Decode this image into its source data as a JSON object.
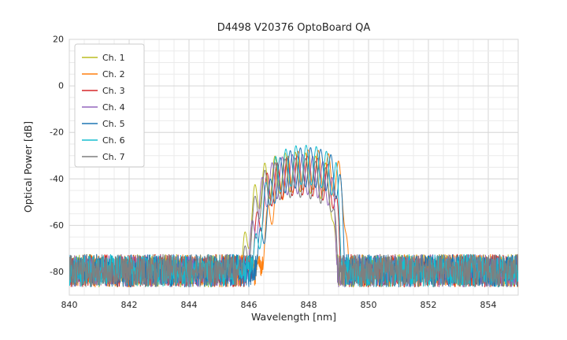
{
  "chart_data": {
    "type": "line",
    "title": "D4498 V20376 OptoBoard QA",
    "xlabel": "Wavelength [nm]",
    "ylabel": "Optical Power [dB]",
    "xlim": [
      840,
      855
    ],
    "ylim": [
      -90,
      20
    ],
    "xticks": [
      840,
      842,
      844,
      846,
      848,
      850,
      852,
      854
    ],
    "yticks": [
      20,
      0,
      -20,
      -40,
      -60,
      -80
    ],
    "x_minor_step": 0.5,
    "y_minor_step": 5,
    "grid": true,
    "legend_position": "upper left",
    "noise_floor_db": -79.5,
    "noise_spread_db": 7,
    "mode_spacing_nm": 0.34,
    "ripple_depth_db": 17,
    "signal_band_nm": [
      845.4,
      849.3
    ],
    "series": [
      {
        "name": "Ch. 1",
        "color": "#bcbd22",
        "center_nm": 847.55,
        "peak_db": -28.5,
        "hw": 1.15,
        "phase": 0.0
      },
      {
        "name": "Ch. 2",
        "color": "#ff7f0e",
        "center_nm": 848.05,
        "peak_db": -27.5,
        "hw": 1.05,
        "phase": 1.3
      },
      {
        "name": "Ch. 3",
        "color": "#d62728",
        "center_nm": 847.75,
        "peak_db": -30.0,
        "hw": 1.1,
        "phase": 2.4
      },
      {
        "name": "Ch. 4",
        "color": "#9467bd",
        "center_nm": 847.65,
        "peak_db": -29.5,
        "hw": 1.1,
        "phase": 3.6
      },
      {
        "name": "Ch. 5",
        "color": "#1f77b4",
        "center_nm": 847.95,
        "peak_db": -26.5,
        "hw": 1.05,
        "phase": 4.2
      },
      {
        "name": "Ch. 6",
        "color": "#17becf",
        "center_nm": 847.85,
        "peak_db": -25.5,
        "hw": 1.05,
        "phase": 5.1
      },
      {
        "name": "Ch. 7",
        "color": "#7f7f7f",
        "center_nm": 847.6,
        "peak_db": -31.0,
        "hw": 1.15,
        "phase": 0.9
      }
    ]
  }
}
